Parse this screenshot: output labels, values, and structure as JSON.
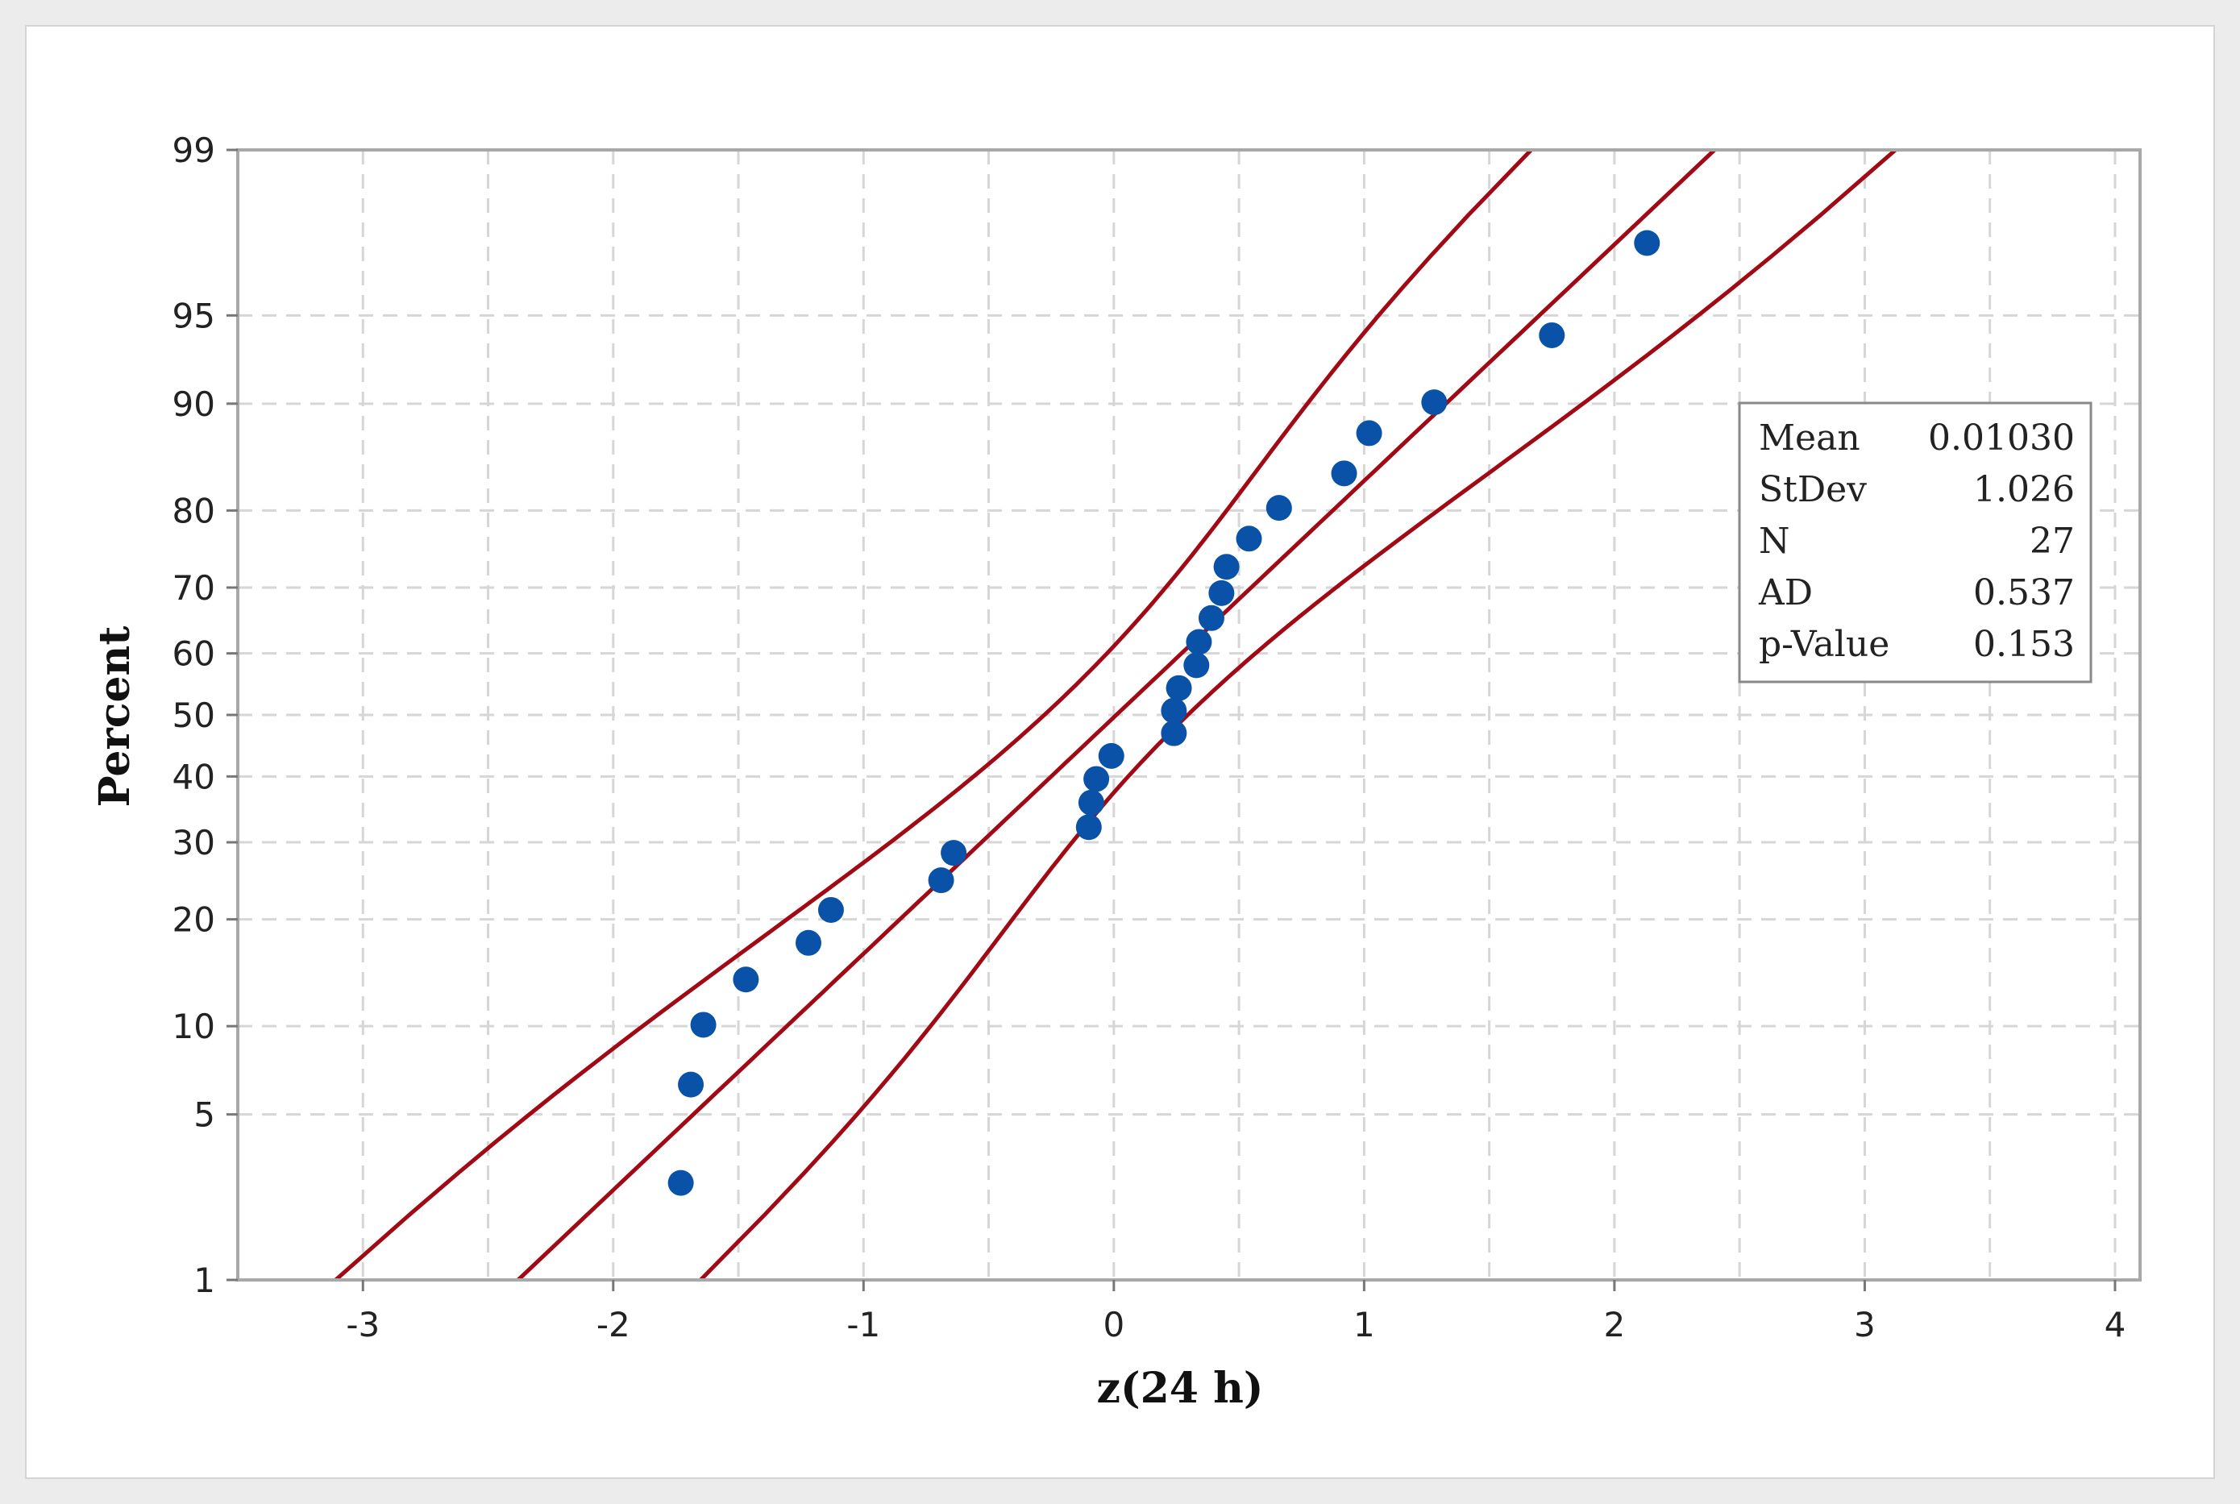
{
  "chart_data": {
    "type": "scatter",
    "subtype": "normal probability plot",
    "title": "",
    "xlabel": "z(24 h)",
    "ylabel": "Percent",
    "x_ticks": [
      "-3",
      "-2",
      "-1",
      "0",
      "1",
      "2",
      "3",
      "4"
    ],
    "y_ticks": [
      "1",
      "5",
      "10",
      "20",
      "30",
      "40",
      "50",
      "60",
      "70",
      "80",
      "90",
      "95",
      "99"
    ],
    "xlim": [
      -3.5,
      4.1
    ],
    "ylim": [
      1,
      99
    ],
    "y_scale": "normal probability",
    "grid": true,
    "points": [
      {
        "x": -1.73,
        "y": 2.7
      },
      {
        "x": -1.69,
        "y": 6.4
      },
      {
        "x": -1.64,
        "y": 10.1
      },
      {
        "x": -1.47,
        "y": 13.8
      },
      {
        "x": -1.22,
        "y": 17.4
      },
      {
        "x": -1.13,
        "y": 21.1
      },
      {
        "x": -0.69,
        "y": 24.8
      },
      {
        "x": -0.64,
        "y": 28.5
      },
      {
        "x": -0.1,
        "y": 32.2
      },
      {
        "x": -0.09,
        "y": 35.9
      },
      {
        "x": -0.07,
        "y": 39.6
      },
      {
        "x": -0.01,
        "y": 43.3
      },
      {
        "x": 0.24,
        "y": 47
      },
      {
        "x": 0.24,
        "y": 50.7
      },
      {
        "x": 0.26,
        "y": 54.4
      },
      {
        "x": 0.33,
        "y": 58.1
      },
      {
        "x": 0.34,
        "y": 61.8
      },
      {
        "x": 0.39,
        "y": 65.5
      },
      {
        "x": 0.43,
        "y": 69.2
      },
      {
        "x": 0.45,
        "y": 72.9
      },
      {
        "x": 0.54,
        "y": 76.6
      },
      {
        "x": 0.66,
        "y": 80.3
      },
      {
        "x": 0.92,
        "y": 84
      },
      {
        "x": 1.02,
        "y": 87.7
      },
      {
        "x": 1.28,
        "y": 90.1
      },
      {
        "x": 1.75,
        "y": 94.1
      },
      {
        "x": 2.13,
        "y": 97.4
      }
    ],
    "fit_line": {
      "mean": 0.0103,
      "stdev": 1.026
    },
    "band_edges": {
      "x_at_1_percent": {
        "left": -3.13,
        "fit": -2.38,
        "right": -1.63
      },
      "x_at_99_percent": {
        "left": 1.64,
        "fit": 2.4,
        "right": 3.15
      }
    },
    "stats_box": {
      "rows": [
        {
          "label": "Mean",
          "value": "0.01030"
        },
        {
          "label": "StDev",
          "value": "1.026"
        },
        {
          "label": "N",
          "value": "27"
        },
        {
          "label": "AD",
          "value": "0.537"
        },
        {
          "label": "p-Value",
          "value": "0.153"
        }
      ],
      "placement": "right"
    },
    "colors": {
      "points": "#0a52a8",
      "lines": "#a10a14",
      "outer_background": "#ececec",
      "plot_background": "#ffffff",
      "grid": "#d6d6d6",
      "frame": "#a8a8a8"
    }
  }
}
